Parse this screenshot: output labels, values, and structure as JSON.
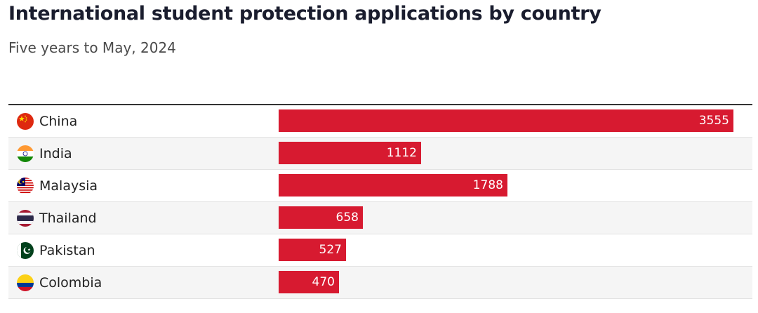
{
  "title": "International student protection applications by country",
  "subtitle": "Five years to May, 2024",
  "colors": {
    "bar": "#d71a30",
    "title": "#1a1d2e",
    "row_alt": "#f5f5f5"
  },
  "chart_data": {
    "type": "bar",
    "orientation": "horizontal",
    "title": "International student protection applications by country",
    "subtitle": "Five years to May, 2024",
    "categories": [
      "China",
      "India",
      "Malaysia",
      "Thailand",
      "Pakistan",
      "Colombia"
    ],
    "values": [
      3555,
      1112,
      1788,
      658,
      527,
      470
    ],
    "flag_icons": [
      "china-flag-icon",
      "india-flag-icon",
      "malaysia-flag-icon",
      "thailand-flag-icon",
      "pakistan-flag-icon",
      "colombia-flag-icon"
    ],
    "xlim": [
      0,
      3555
    ],
    "grid": false,
    "data_labels": true
  }
}
